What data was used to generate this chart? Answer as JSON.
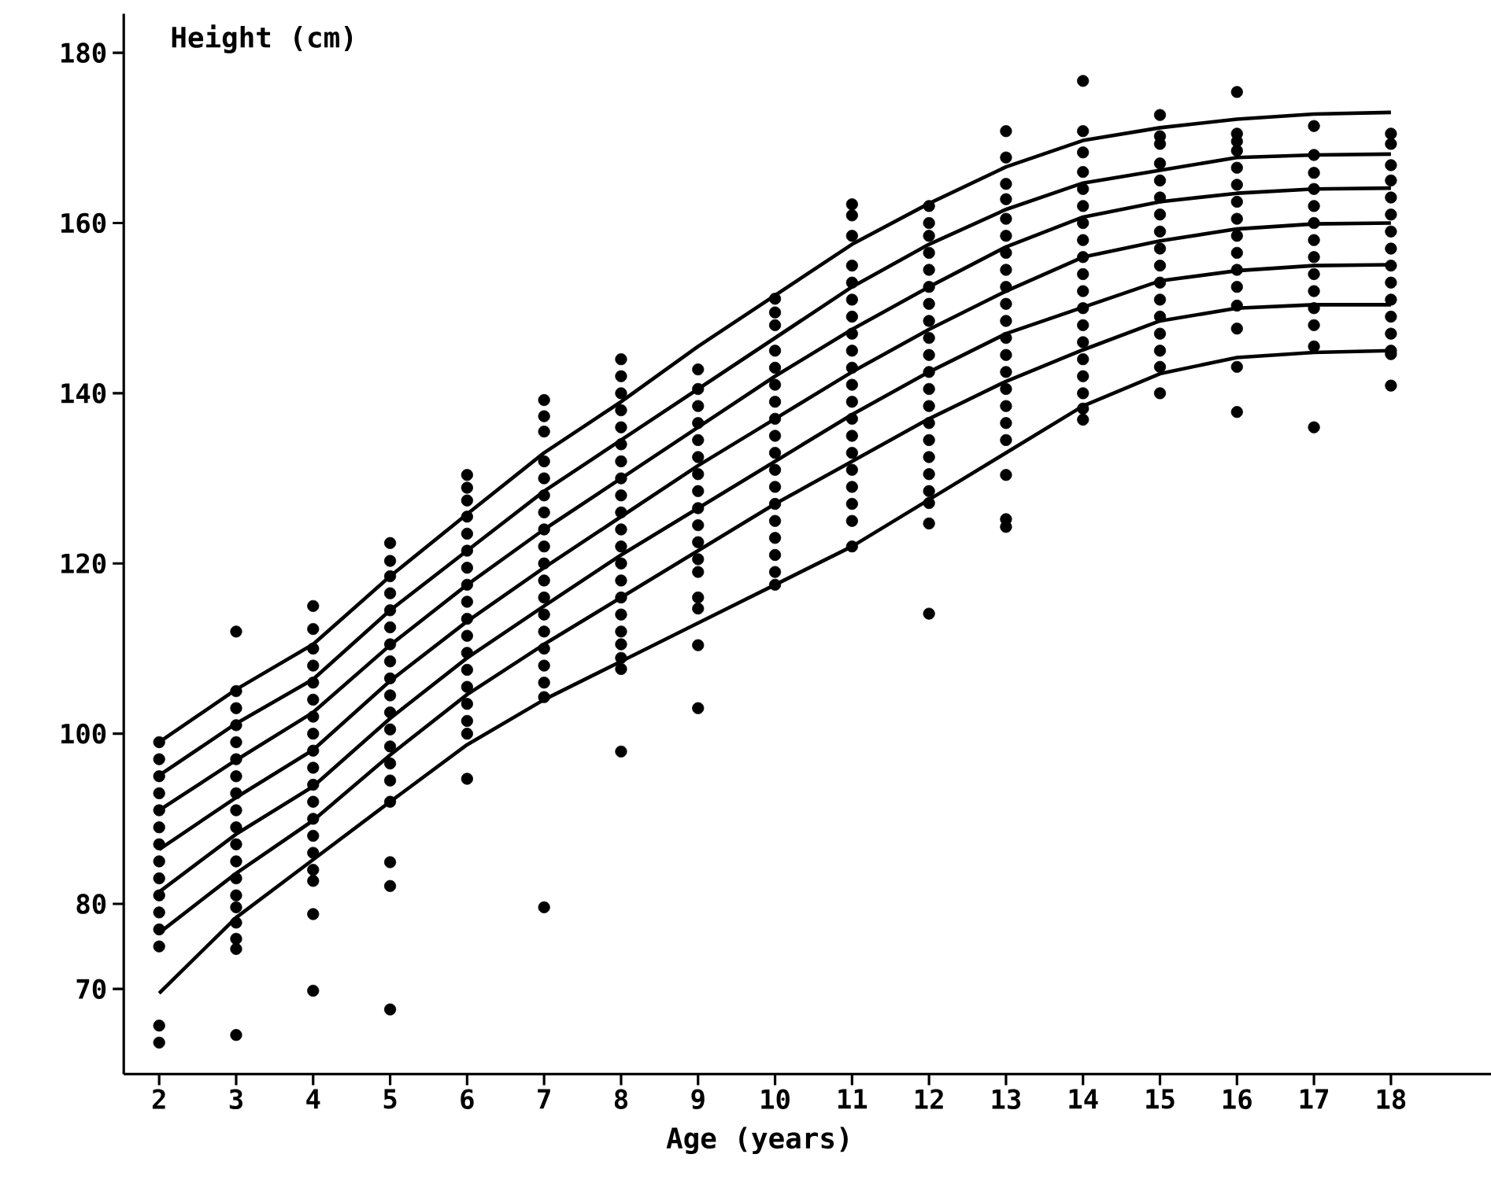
{
  "chart_data": {
    "type": "scatter",
    "xlabel": "Age (years)",
    "ylabel": "Height (cm)",
    "xlim": [
      1.54,
      19.3
    ],
    "ylim": [
      60,
      184.6
    ],
    "xticks": [
      2,
      3,
      4,
      5,
      6,
      7,
      8,
      9,
      10,
      11,
      12,
      13,
      14,
      15,
      16,
      17,
      18
    ],
    "yticks": [
      70,
      80,
      100,
      120,
      140,
      160,
      180
    ],
    "x": [
      2,
      3,
      4,
      5,
      6,
      7,
      8,
      9,
      10,
      11,
      12,
      13,
      14,
      15,
      16,
      17,
      18
    ],
    "series": [
      {
        "type": "scatter",
        "color": "#000000",
        "marker": "circle",
        "x": [
          2,
          2,
          2,
          2,
          2,
          2,
          2,
          2,
          2,
          2,
          2,
          2,
          2,
          2,
          2
        ],
        "values": [
          99,
          97,
          95,
          93,
          91,
          89,
          87,
          85,
          83,
          81,
          79,
          77,
          75,
          65.7,
          63.7
        ]
      },
      {
        "type": "scatter",
        "color": "#000000",
        "marker": "circle",
        "x": [
          3,
          3,
          3,
          3,
          3,
          3,
          3,
          3,
          3,
          3,
          3,
          3,
          3,
          3,
          3,
          3,
          3,
          3,
          3
        ],
        "values": [
          112,
          105,
          103,
          101,
          99,
          97,
          95,
          93,
          91,
          89,
          87,
          85,
          83,
          81,
          79.6,
          77.8,
          75.9,
          74.7,
          64.6
        ]
      },
      {
        "type": "scatter",
        "color": "#000000",
        "marker": "circle",
        "x": [
          4,
          4,
          4,
          4,
          4,
          4,
          4,
          4,
          4,
          4,
          4,
          4,
          4,
          4,
          4,
          4,
          4,
          4,
          4
        ],
        "values": [
          115,
          112.3,
          110,
          108,
          106,
          104,
          102,
          100,
          98,
          96,
          94,
          92,
          90,
          88,
          86,
          84,
          82.7,
          78.8,
          69.8
        ]
      },
      {
        "type": "scatter",
        "color": "#000000",
        "marker": "circle",
        "x": [
          5,
          5,
          5,
          5,
          5,
          5,
          5,
          5,
          5,
          5,
          5,
          5,
          5,
          5,
          5,
          5,
          5,
          5,
          5
        ],
        "values": [
          122.4,
          120.3,
          118.5,
          116.5,
          114.5,
          112.5,
          110.5,
          108.5,
          106.5,
          104.5,
          102.5,
          100.5,
          98.5,
          96.5,
          94.5,
          92,
          84.9,
          82.1,
          67.6
        ]
      },
      {
        "type": "scatter",
        "color": "#000000",
        "marker": "circle",
        "x": [
          6,
          6,
          6,
          6,
          6,
          6,
          6,
          6,
          6,
          6,
          6,
          6,
          6,
          6,
          6,
          6,
          6,
          6
        ],
        "values": [
          130.4,
          128.9,
          127.4,
          125.5,
          123.5,
          121.5,
          119.5,
          117.5,
          115.5,
          113.5,
          111.5,
          109.5,
          107.5,
          105.5,
          103.5,
          101.5,
          100,
          94.7
        ]
      },
      {
        "type": "scatter",
        "color": "#000000",
        "marker": "circle",
        "x": [
          7,
          7,
          7,
          7,
          7,
          7,
          7,
          7,
          7,
          7,
          7,
          7,
          7,
          7,
          7,
          7,
          7,
          7,
          7
        ],
        "values": [
          139.2,
          137.3,
          135.5,
          132,
          130,
          128,
          126,
          124,
          122,
          120,
          118,
          116,
          114,
          112,
          110,
          108,
          106,
          104.3,
          79.6
        ]
      },
      {
        "type": "scatter",
        "color": "#000000",
        "marker": "circle",
        "x": [
          8,
          8,
          8,
          8,
          8,
          8,
          8,
          8,
          8,
          8,
          8,
          8,
          8,
          8,
          8,
          8,
          8,
          8,
          8,
          8,
          8
        ],
        "values": [
          144,
          142,
          140,
          138,
          136,
          134,
          132,
          130,
          128,
          126,
          124,
          122,
          120,
          118,
          116,
          114,
          112,
          110.5,
          108.9,
          107.6,
          97.9
        ]
      },
      {
        "type": "scatter",
        "color": "#000000",
        "marker": "circle",
        "x": [
          9,
          9,
          9,
          9,
          9,
          9,
          9,
          9,
          9,
          9,
          9,
          9,
          9,
          9,
          9,
          9,
          9
        ],
        "values": [
          142.8,
          140.5,
          138.5,
          136.5,
          134.5,
          132.5,
          130.5,
          128.5,
          126.5,
          124.5,
          122.5,
          120.5,
          119,
          116,
          114.7,
          110.4,
          103
        ]
      },
      {
        "type": "scatter",
        "color": "#000000",
        "marker": "circle",
        "x": [
          10,
          10,
          10,
          10,
          10,
          10,
          10,
          10,
          10,
          10,
          10,
          10,
          10,
          10,
          10,
          10,
          10,
          10
        ],
        "values": [
          151.1,
          149.5,
          148,
          145,
          143,
          141,
          139,
          137,
          135,
          133,
          131,
          129,
          127,
          125,
          123,
          121,
          119,
          117.5
        ]
      },
      {
        "type": "scatter",
        "color": "#000000",
        "marker": "circle",
        "x": [
          11,
          11,
          11,
          11,
          11,
          11,
          11,
          11,
          11,
          11,
          11,
          11,
          11,
          11,
          11,
          11,
          11,
          11,
          11,
          11
        ],
        "values": [
          162.2,
          160.9,
          158.5,
          155,
          153,
          151,
          149,
          147,
          145,
          143,
          141,
          139,
          137,
          135,
          133,
          131,
          129,
          127,
          125,
          122
        ]
      },
      {
        "type": "scatter",
        "color": "#000000",
        "marker": "circle",
        "x": [
          12,
          12,
          12,
          12,
          12,
          12,
          12,
          12,
          12,
          12,
          12,
          12,
          12,
          12,
          12,
          12,
          12,
          12,
          12,
          12,
          12
        ],
        "values": [
          162,
          160,
          158.5,
          156.5,
          154.5,
          152.5,
          150.5,
          148.5,
          146.5,
          144.5,
          142.5,
          140.5,
          138.5,
          136.5,
          134.5,
          132.5,
          130.5,
          128.5,
          127.1,
          124.7,
          114.1
        ]
      },
      {
        "type": "scatter",
        "color": "#000000",
        "marker": "circle",
        "x": [
          13,
          13,
          13,
          13,
          13,
          13,
          13,
          13,
          13,
          13,
          13,
          13,
          13,
          13,
          13,
          13,
          13,
          13,
          13,
          13,
          13
        ],
        "values": [
          170.8,
          167.7,
          164.6,
          162.8,
          160.5,
          158.5,
          156.5,
          154.5,
          152.5,
          150.5,
          148.5,
          146.5,
          144.5,
          142.5,
          140.5,
          138.5,
          136.5,
          134.5,
          130.4,
          125.2,
          124.3
        ]
      },
      {
        "type": "scatter",
        "color": "#000000",
        "marker": "circle",
        "x": [
          14,
          14,
          14,
          14,
          14,
          14,
          14,
          14,
          14,
          14,
          14,
          14,
          14,
          14,
          14,
          14,
          14,
          14,
          14
        ],
        "values": [
          176.7,
          170.8,
          168.3,
          166,
          164,
          162,
          160,
          158,
          156,
          154,
          152,
          150,
          148,
          146,
          144,
          142,
          140,
          138.2,
          136.9
        ]
      },
      {
        "type": "scatter",
        "color": "#000000",
        "marker": "circle",
        "x": [
          15,
          15,
          15,
          15,
          15,
          15,
          15,
          15,
          15,
          15,
          15,
          15,
          15,
          15,
          15,
          15,
          15
        ],
        "values": [
          172.7,
          170.2,
          169.3,
          167,
          165,
          163,
          161,
          159,
          157,
          155,
          153,
          151,
          149,
          147,
          145,
          143.1,
          140
        ]
      },
      {
        "type": "scatter",
        "color": "#000000",
        "marker": "circle",
        "x": [
          16,
          16,
          16,
          16,
          16,
          16,
          16,
          16,
          16,
          16,
          16,
          16,
          16,
          16,
          16,
          16
        ],
        "values": [
          175.4,
          170.5,
          169.6,
          168.5,
          166.5,
          164.5,
          162.5,
          160.5,
          158.5,
          156.5,
          154.5,
          152.5,
          150.3,
          147.6,
          143.1,
          137.8
        ]
      },
      {
        "type": "scatter",
        "color": "#000000",
        "marker": "circle",
        "x": [
          17,
          17,
          17,
          17,
          17,
          17,
          17,
          17,
          17,
          17,
          17,
          17,
          17,
          17
        ],
        "values": [
          171.4,
          168,
          165.9,
          164,
          162,
          160,
          158,
          156,
          154,
          152,
          150,
          148,
          145.5,
          136
        ]
      },
      {
        "type": "scatter",
        "color": "#000000",
        "marker": "circle",
        "x": [
          18,
          18,
          18,
          18,
          18,
          18,
          18,
          18,
          18,
          18,
          18,
          18,
          18,
          18,
          18,
          18
        ],
        "values": [
          170.5,
          169.3,
          166.8,
          165,
          163,
          161,
          159,
          157,
          155,
          153,
          151,
          149,
          147,
          145,
          144.6,
          140.9
        ]
      },
      {
        "type": "line",
        "color": "#000000",
        "marker": "none",
        "line_style": "solid",
        "values": [
          99,
          105.2,
          110.5,
          118.5,
          125.8,
          133,
          139,
          145.5,
          151.5,
          157.5,
          162.3,
          166.6,
          169.7,
          171.2,
          172.2,
          172.8,
          173.0
        ]
      },
      {
        "type": "line",
        "color": "#000000",
        "marker": "none",
        "line_style": "solid",
        "values": [
          95.1,
          101.2,
          106.4,
          114.5,
          121.5,
          128.5,
          134.5,
          140.5,
          146.5,
          152.5,
          157.5,
          161.6,
          164.7,
          166.2,
          167.7,
          168.0,
          168.1
        ]
      },
      {
        "type": "line",
        "color": "#000000",
        "marker": "none",
        "line_style": "solid",
        "values": [
          91.0,
          96.9,
          102.5,
          110.4,
          117.5,
          124,
          130,
          136,
          142,
          147.5,
          152.5,
          157.2,
          160.7,
          162.5,
          163.5,
          164.0,
          164.1
        ]
      },
      {
        "type": "line",
        "color": "#000000",
        "marker": "none",
        "line_style": "solid",
        "values": [
          86.4,
          92.5,
          98.1,
          106.2,
          113.2,
          119.5,
          125.5,
          131.5,
          137,
          142.5,
          147.5,
          152.0,
          156.0,
          157.9,
          159.3,
          159.9,
          160.0
        ]
      },
      {
        "type": "line",
        "color": "#000000",
        "marker": "none",
        "line_style": "solid",
        "values": [
          81.4,
          88.2,
          93.8,
          101.8,
          108.9,
          115,
          121,
          126.5,
          132,
          137.5,
          142.5,
          147.0,
          150.1,
          153.2,
          154.4,
          155.0,
          155.1
        ]
      },
      {
        "type": "line",
        "color": "#000000",
        "marker": "none",
        "line_style": "solid",
        "values": [
          76.6,
          83.6,
          89.8,
          97.5,
          104.6,
          110.5,
          116,
          121.5,
          127,
          132,
          137,
          141.4,
          145.1,
          148.5,
          150.0,
          150.4,
          150.4
        ]
      },
      {
        "type": "line",
        "color": "#000000",
        "marker": "none",
        "line_style": "solid",
        "values": [
          69.5,
          78.4,
          85.2,
          92.0,
          98.7,
          104,
          108.5,
          113,
          117.5,
          122,
          127.5,
          133,
          138.5,
          142.3,
          144.2,
          144.8,
          145.0
        ]
      }
    ]
  }
}
